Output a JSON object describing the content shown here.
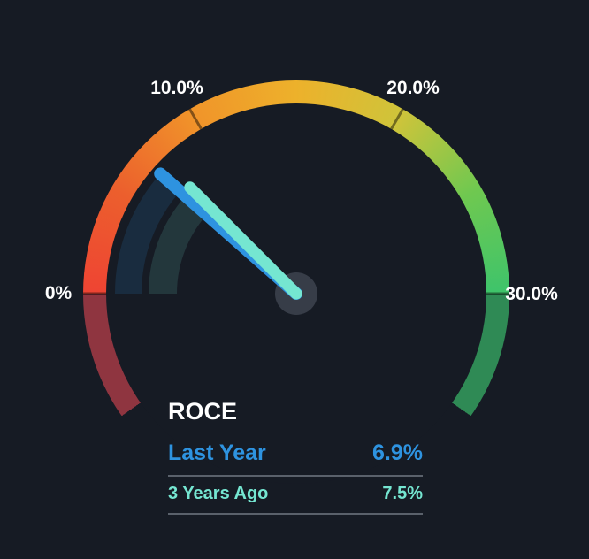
{
  "colors": {
    "background": "#161b24",
    "hub": "#373d48",
    "divider": "#5a616b",
    "tick_label": "#ffffff",
    "tick_line": "rgba(0,0,0,0.45)"
  },
  "chart_data": {
    "type": "gauge",
    "title": "ROCE",
    "unit": "%",
    "min": 0,
    "max": 30,
    "start_angle_deg": 180,
    "end_angle_deg": 0,
    "overflow_deg": 35,
    "ticks": [
      {
        "value": 0,
        "label": "0%"
      },
      {
        "value": 10,
        "label": "10.0%"
      },
      {
        "value": 20,
        "label": "20.0%"
      },
      {
        "value": 30,
        "label": "30.0%"
      }
    ],
    "arc_gradient": [
      {
        "value": 0,
        "color": "#ee4433"
      },
      {
        "value": 5,
        "color": "#ec5f2d"
      },
      {
        "value": 10,
        "color": "#f0942a"
      },
      {
        "value": 15,
        "color": "#edb12b"
      },
      {
        "value": 20,
        "color": "#cfc43a"
      },
      {
        "value": 25,
        "color": "#6fc850"
      },
      {
        "value": 30,
        "color": "#3ec46b"
      }
    ],
    "below_min_color": "#8f3540",
    "above_max_color": "#2f8a55",
    "series": [
      {
        "name": "Last Year",
        "value": 6.9,
        "display": "6.9%",
        "color": "#2e93e0"
      },
      {
        "name": "3 Years Ago",
        "value": 7.5,
        "display": "7.5%",
        "color": "#75e6d1"
      }
    ]
  }
}
